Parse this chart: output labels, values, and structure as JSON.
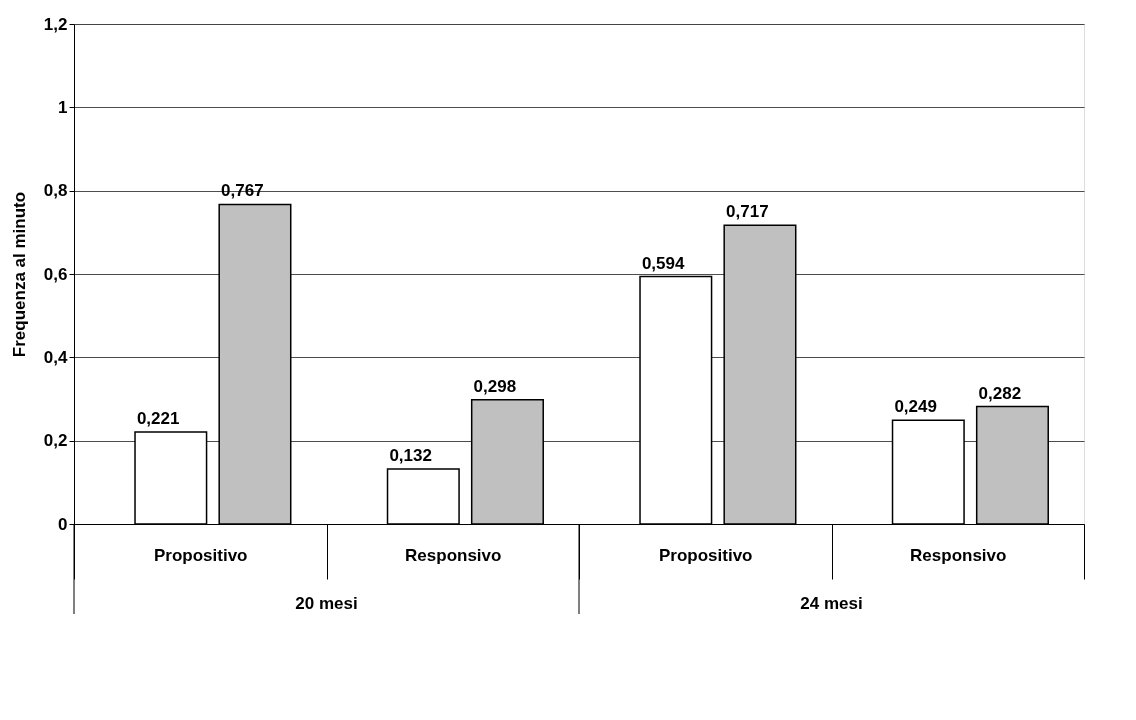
{
  "chart_data": {
    "type": "bar",
    "ylabel": "Frequenza al minuto",
    "categories": [
      "Propositivo",
      "Responsivo",
      "Propositivo",
      "Responsivo"
    ],
    "series": [
      {
        "color": "#ffffff",
        "values": [
          0.221,
          0.132,
          0.594,
          0.249
        ],
        "value_labels": [
          "0,221",
          "0,132",
          "0,594",
          "0,249"
        ]
      },
      {
        "color": "#c0c0c0",
        "values": [
          0.767,
          0.298,
          0.717,
          0.282
        ],
        "value_labels": [
          "0,767",
          "0,298",
          "0,717",
          "0,282"
        ]
      }
    ],
    "ylim": [
      0,
      1.2
    ],
    "yticks": [
      0,
      {
        "value": 0.2,
        "label": "0,2"
      },
      {
        "value": 0.4,
        "label": "0,4"
      },
      {
        "value": 0.6,
        "label": "0,6"
      },
      {
        "value": 0.8,
        "label": "0,8"
      },
      1,
      {
        "value": 1.2,
        "label": "1,2"
      }
    ],
    "grid": "y",
    "legend": false,
    "annotations": [
      "20 mesi",
      "24 mesi"
    ]
  }
}
